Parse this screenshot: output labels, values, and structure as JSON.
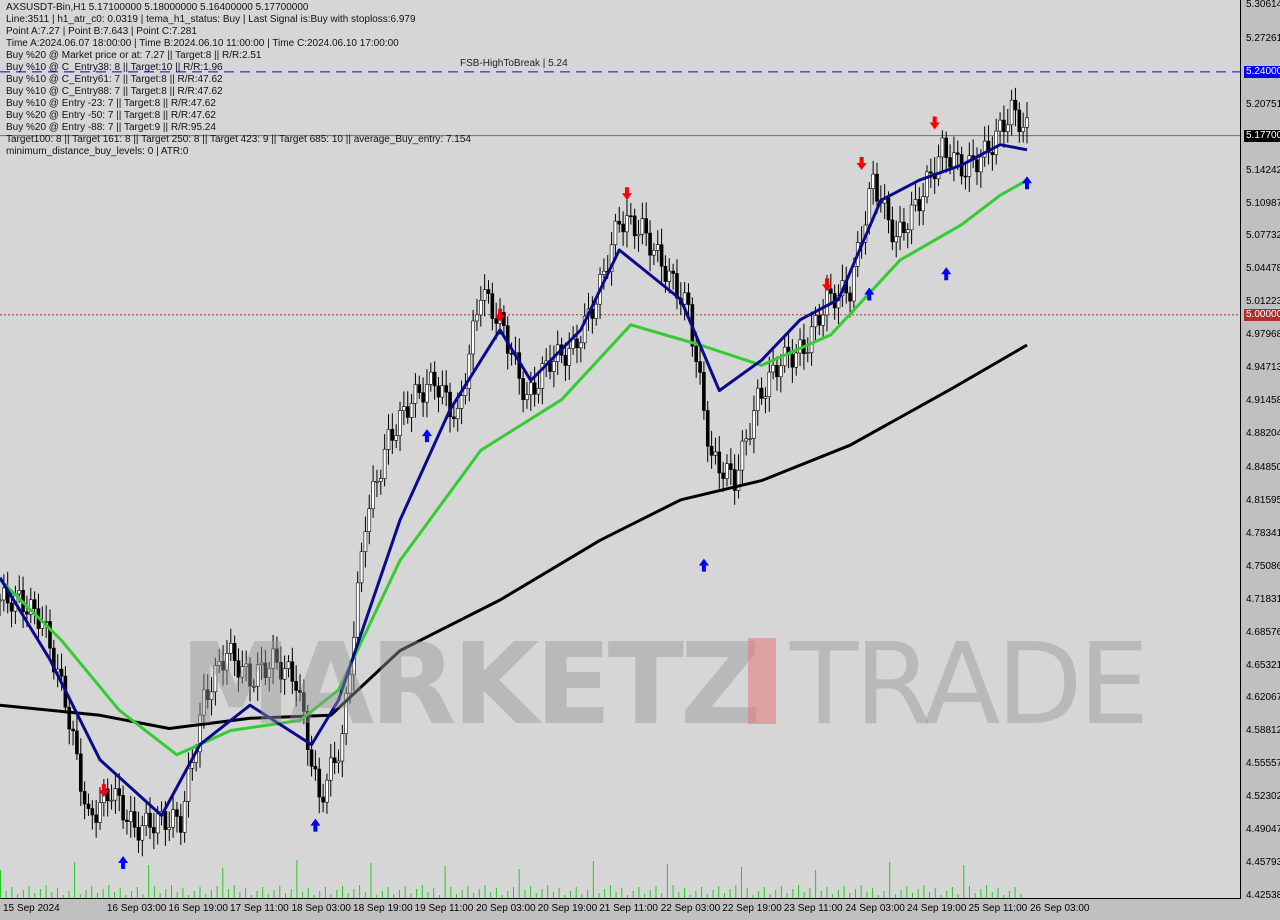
{
  "header": {
    "symbol_line": "AXSUSDT-Bin,H1  5.17100000 5.18000000 5.16400000 5.17700000",
    "lines": [
      "Line:3511 | h1_atr_c0: 0.0319 | tema_h1_status: Buy | Last Signal is:Buy with stoploss:6.979",
      "Point A:7.27 | Point B:7.643 | Point C:7.281",
      "Time A:2024.06.07 18:00:00 | Time B:2024.06.10 11:00:00 | Time C:2024.06.10 17:00:00",
      "Buy %20 @ Market price or at: 7.27 || Target:8 || R/R:2.51",
      "Buy %10 @ C_Entry38: 8 || Target:10 || R/R:1.96",
      "Buy %10 @ C_Entry61: 7 || Target:8 || R/R:47.62",
      "Buy %10 @ C_Entry88: 7 || Target:8 || R/R:47.62",
      "Buy %10 @ Entry -23: 7 || Target:8 || R/R:47.62",
      "Buy %20 @ Entry -50: 7 || Target:8 || R/R:47.62",
      "Buy %20 @ Entry -88: 7 || Target:9 || R/R:95.24",
      "Target100: 8 || Target 161: 8 || Target 250: 8 || Target 423: 9 || Target 685: 10 || average_Buy_entry: 7.154",
      "minimum_distance_buy_levels: 0 | ATR:0"
    ],
    "fsb_label": "FSB-HighToBreak | 5.24"
  },
  "watermark": {
    "left": "MARKETZ",
    "right": "TRADE"
  },
  "colors": {
    "background": "#d6d6d6",
    "candle": "#000000",
    "ma_fast": "#0a0a8c",
    "ma_mid": "#33cc33",
    "ma_slow": "#000000",
    "fsb_line": "#0000ff",
    "price_line": "#607080",
    "level_line": "#cc0000",
    "volume": "#22cc22",
    "buy_arrow": "#0000ff",
    "sell_arrow": "#ff0000"
  },
  "chart_data": {
    "type": "candlestick",
    "time_start": "2024-09-15T00:00",
    "step_hours": 6,
    "closes": [
      4.718,
      4.698,
      4.619,
      4.5,
      4.53,
      4.491,
      4.5,
      4.5,
      4.619,
      4.668,
      4.639,
      4.658,
      4.639,
      4.52,
      4.58,
      4.797,
      4.876,
      4.916,
      4.935,
      4.896,
      5.025,
      4.985,
      4.916,
      4.955,
      4.965,
      5.015,
      5.094,
      5.084,
      5.044,
      5.005,
      4.857,
      4.837,
      4.916,
      4.955,
      4.965,
      5.015,
      5.025,
      5.133,
      5.074,
      5.113,
      5.163,
      5.143,
      5.163,
      5.202,
      5.173,
      5.177
    ],
    "ylim": [
      4.42538,
      5.30614
    ],
    "y_ticks": [
      "5.30614",
      "5.27261",
      "5.24000",
      "5.20751",
      "5.17700",
      "5.14242",
      "5.10987",
      "5.07732",
      "5.04478",
      "5.01223",
      "5.00000",
      "4.97968",
      "4.94713",
      "4.91458",
      "4.88204",
      "4.84850",
      "4.81595",
      "4.78341",
      "4.75086",
      "4.71831",
      "4.68576",
      "4.65321",
      "4.62067",
      "4.58812",
      "4.55557",
      "4.52302",
      "4.49047",
      "4.45793",
      "4.42538"
    ],
    "x_ticks": [
      {
        "label": "15 Sep 2024",
        "time": "2024-09-15T00:00"
      },
      {
        "label": "16 Sep 03:00",
        "time": "2024-09-16T03:00"
      },
      {
        "label": "16 Sep 19:00",
        "time": "2024-09-16T19:00"
      },
      {
        "label": "17 Sep 11:00",
        "time": "2024-09-17T11:00"
      },
      {
        "label": "18 Sep 03:00",
        "time": "2024-09-18T03:00"
      },
      {
        "label": "18 Sep 19:00",
        "time": "2024-09-18T19:00"
      },
      {
        "label": "19 Sep 11:00",
        "time": "2024-09-19T11:00"
      },
      {
        "label": "20 Sep 03:00",
        "time": "2024-09-20T03:00"
      },
      {
        "label": "20 Sep 19:00",
        "time": "2024-09-20T19:00"
      },
      {
        "label": "21 Sep 11:00",
        "time": "2024-09-21T11:00"
      },
      {
        "label": "22 Sep 03:00",
        "time": "2024-09-22T03:00"
      },
      {
        "label": "22 Sep 19:00",
        "time": "2024-09-22T19:00"
      },
      {
        "label": "23 Sep 11:00",
        "time": "2024-09-23T11:00"
      },
      {
        "label": "24 Sep 03:00",
        "time": "2024-09-24T03:00"
      },
      {
        "label": "24 Sep 19:00",
        "time": "2024-09-24T19:00"
      },
      {
        "label": "25 Sep 11:00",
        "time": "2024-09-25T11:00"
      },
      {
        "label": "26 Sep 03:00",
        "time": "2024-09-26T03:00"
      }
    ],
    "levels": [
      {
        "price": 5.24,
        "label": "5.24000",
        "style": "dashed",
        "color": "#0000ff"
      },
      {
        "price": 5.177,
        "label": "5.17700",
        "style": "solid",
        "color": "#000000"
      },
      {
        "price": 5.0,
        "label": "5.00000",
        "style": "dotted",
        "color": "#b03030"
      }
    ],
    "moving_averages": [
      {
        "color": "#000000",
        "points": [
          [
            "2024-09-15T00:00",
            4.614
          ],
          [
            "2024-09-16T02:00",
            4.604
          ],
          [
            "2024-09-16T20:00",
            4.591
          ],
          [
            "2024-09-17T17:00",
            4.601
          ],
          [
            "2024-09-18T14:00",
            4.604
          ],
          [
            "2024-09-19T08:00",
            4.668
          ],
          [
            "2024-09-20T10:00",
            4.718
          ],
          [
            "2024-09-21T12:00",
            4.777
          ],
          [
            "2024-09-22T09:00",
            4.817
          ],
          [
            "2024-09-23T06:00",
            4.836
          ],
          [
            "2024-09-24T05:00",
            4.871
          ],
          [
            "2024-09-25T07:00",
            4.926
          ],
          [
            "2024-09-26T03:00",
            4.97
          ]
        ]
      },
      {
        "color": "#33cc33",
        "points": [
          [
            "2024-09-15T00:00",
            4.738
          ],
          [
            "2024-09-15T16:00",
            4.678
          ],
          [
            "2024-09-16T07:00",
            4.609
          ],
          [
            "2024-09-16T22:00",
            4.565
          ],
          [
            "2024-09-17T12:00",
            4.589
          ],
          [
            "2024-09-18T06:00",
            4.599
          ],
          [
            "2024-09-18T16:00",
            4.629
          ],
          [
            "2024-09-19T08:00",
            4.757
          ],
          [
            "2024-09-20T05:00",
            4.866
          ],
          [
            "2024-09-21T02:00",
            4.916
          ],
          [
            "2024-09-21T20:00",
            4.99
          ],
          [
            "2024-09-22T14:00",
            4.97
          ],
          [
            "2024-09-23T06:00",
            4.95
          ],
          [
            "2024-09-24T00:00",
            4.98
          ],
          [
            "2024-09-24T18:00",
            5.054
          ],
          [
            "2024-09-25T10:00",
            5.089
          ],
          [
            "2024-09-25T20:00",
            5.118
          ],
          [
            "2024-09-26T03:00",
            5.133
          ]
        ]
      },
      {
        "color": "#0a0a8c",
        "points": [
          [
            "2024-09-15T00:00",
            4.74
          ],
          [
            "2024-09-15T13:00",
            4.659
          ],
          [
            "2024-09-16T02:00",
            4.56
          ],
          [
            "2024-09-16T18:00",
            4.505
          ],
          [
            "2024-09-17T04:00",
            4.575
          ],
          [
            "2024-09-17T17:00",
            4.614
          ],
          [
            "2024-09-18T09:00",
            4.575
          ],
          [
            "2024-09-18T16:00",
            4.619
          ],
          [
            "2024-09-19T08:00",
            4.797
          ],
          [
            "2024-09-19T21:00",
            4.906
          ],
          [
            "2024-09-20T10:00",
            4.985
          ],
          [
            "2024-09-20T18:00",
            4.935
          ],
          [
            "2024-09-21T07:00",
            4.985
          ],
          [
            "2024-09-21T17:00",
            5.064
          ],
          [
            "2024-09-22T09:00",
            5.015
          ],
          [
            "2024-09-22T19:00",
            4.925
          ],
          [
            "2024-09-23T06:00",
            4.955
          ],
          [
            "2024-09-23T16:00",
            4.995
          ],
          [
            "2024-09-24T02:00",
            5.015
          ],
          [
            "2024-09-24T13:00",
            5.113
          ],
          [
            "2024-09-24T23:00",
            5.133
          ],
          [
            "2024-09-25T10:00",
            5.148
          ],
          [
            "2024-09-25T20:00",
            5.168
          ],
          [
            "2024-09-26T03:00",
            5.163
          ]
        ]
      }
    ],
    "signals": [
      {
        "time": "2024-09-16T08:00",
        "price": 4.458,
        "type": "buy"
      },
      {
        "time": "2024-09-16T03:00",
        "price": 4.53,
        "type": "sell"
      },
      {
        "time": "2024-09-18T10:00",
        "price": 4.495,
        "type": "buy"
      },
      {
        "time": "2024-09-19T15:00",
        "price": 4.88,
        "type": "buy"
      },
      {
        "time": "2024-09-20T10:00",
        "price": 5.0,
        "type": "sell"
      },
      {
        "time": "2024-09-21T19:00",
        "price": 5.12,
        "type": "sell"
      },
      {
        "time": "2024-09-22T15:00",
        "price": 4.752,
        "type": "buy"
      },
      {
        "time": "2024-09-23T23:00",
        "price": 5.03,
        "type": "sell"
      },
      {
        "time": "2024-09-24T10:00",
        "price": 5.02,
        "type": "buy"
      },
      {
        "time": "2024-09-24T08:00",
        "price": 5.15,
        "type": "sell"
      },
      {
        "time": "2024-09-25T06:00",
        "price": 5.04,
        "type": "buy"
      },
      {
        "time": "2024-09-25T03:00",
        "price": 5.19,
        "type": "sell"
      },
      {
        "time": "2024-09-26T03:00",
        "price": 5.13,
        "type": "buy"
      }
    ]
  }
}
